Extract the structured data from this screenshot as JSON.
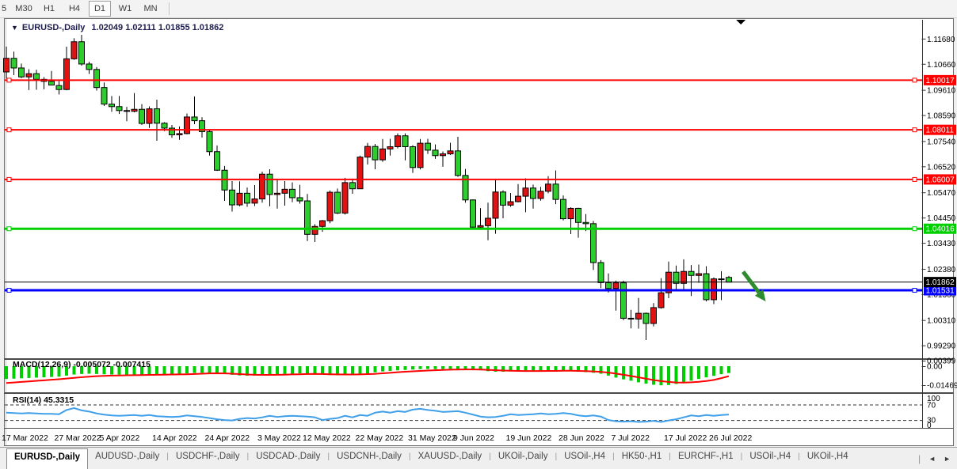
{
  "toolbar": {
    "timeframes": [
      "5",
      "M30",
      "H1",
      "H4",
      "D1",
      "W1",
      "MN"
    ],
    "active_timeframe": "D1"
  },
  "chart_data": {
    "type": "candlestick",
    "dropdown_icon": "▼",
    "symbol": "EURUSD-,Daily",
    "ohlc_display": "1.02049 1.02111 1.01855 1.01862",
    "bull_color": "#e31212",
    "bear_color": "#2bce2b",
    "wick_color": "#000000",
    "y_axis_ticks": [
      "1.11680",
      "1.10660",
      "1.09610",
      "1.08590",
      "1.07540",
      "1.06520",
      "1.05470",
      "1.04450",
      "1.03430",
      "1.02380",
      "1.01360",
      "1.00310",
      "0.99290"
    ],
    "ylim": [
      0.988,
      1.125
    ],
    "x_labels": [
      "17 Mar 2022",
      "27 Mar 2022",
      "5 Apr 2022",
      "14 Apr 2022",
      "24 Apr 2022",
      "3 May 2022",
      "12 May 2022",
      "22 May 2022",
      "31 May 2022",
      "9 Jun 2022",
      "19 Jun 2022",
      "28 Jun 2022",
      "7 Jul 2022",
      "17 Jul 2022",
      "26 Jul 2022"
    ],
    "x_label_indices": [
      0,
      7,
      13,
      20,
      27,
      34,
      40,
      47,
      54,
      60,
      67,
      74,
      81,
      88,
      94
    ],
    "candles": [
      [
        1.1035,
        1.1137,
        1.1008,
        1.109
      ],
      [
        1.109,
        1.1117,
        1.1022,
        1.1051
      ],
      [
        1.1051,
        1.1069,
        1.101,
        1.1015
      ],
      [
        1.1015,
        1.1046,
        1.0962,
        1.1028
      ],
      [
        1.1028,
        1.1044,
        1.0963,
        1.1005
      ],
      [
        1.1005,
        1.1014,
        1.0965,
        1.0997
      ],
      [
        1.0997,
        1.1039,
        1.0981,
        1.0982
      ],
      [
        1.098,
        1.0999,
        1.0944,
        1.0964
      ],
      [
        1.0964,
        1.1137,
        1.0961,
        1.1088
      ],
      [
        1.1088,
        1.1171,
        1.1084,
        1.1157
      ],
      [
        1.1157,
        1.1185,
        1.106,
        1.1067
      ],
      [
        1.1067,
        1.1076,
        1.1027,
        1.1045
      ],
      [
        1.1045,
        1.1055,
        1.096,
        1.0972
      ],
      [
        1.0972,
        1.0992,
        1.0898,
        1.0905
      ],
      [
        1.0905,
        1.0938,
        1.0874,
        1.0895
      ],
      [
        1.0895,
        1.0938,
        1.0865,
        1.0879
      ],
      [
        1.0879,
        1.0894,
        1.0836,
        1.0876
      ],
      [
        1.0876,
        1.095,
        1.0872,
        1.0884
      ],
      [
        1.0884,
        1.0905,
        1.0821,
        1.0827
      ],
      [
        1.0827,
        1.0896,
        1.0809,
        1.0886
      ],
      [
        1.0886,
        1.0923,
        1.0757,
        1.0828
      ],
      [
        1.0828,
        1.0832,
        1.0796,
        1.0808
      ],
      [
        1.0808,
        1.0821,
        1.0769,
        1.0781
      ],
      [
        1.0781,
        1.0815,
        1.0761,
        1.0786
      ],
      [
        1.0786,
        1.0867,
        1.0783,
        1.0853
      ],
      [
        1.0853,
        1.0936,
        1.0824,
        1.0838
      ],
      [
        1.0838,
        1.0852,
        1.077,
        1.0794
      ],
      [
        1.0794,
        1.08,
        1.0697,
        1.0713
      ],
      [
        1.0713,
        1.0738,
        1.0635,
        1.0638
      ],
      [
        1.0638,
        1.0655,
        1.0514,
        1.0558
      ],
      [
        1.0558,
        1.0594,
        1.0471,
        1.0498
      ],
      [
        1.0498,
        1.0593,
        1.0492,
        1.0545
      ],
      [
        1.0545,
        1.0568,
        1.049,
        1.0505
      ],
      [
        1.0505,
        1.0578,
        1.0493,
        1.0522
      ],
      [
        1.0522,
        1.0632,
        1.0507,
        1.0622
      ],
      [
        1.0622,
        1.0642,
        1.0492,
        1.054
      ],
      [
        1.054,
        1.0599,
        1.0483,
        1.0545
      ],
      [
        1.0545,
        1.0594,
        1.0495,
        1.0561
      ],
      [
        1.0561,
        1.0589,
        1.0509,
        1.0527
      ],
      [
        1.0527,
        1.0579,
        1.0503,
        1.0514
      ],
      [
        1.0514,
        1.0542,
        1.0352,
        1.0379
      ],
      [
        1.0379,
        1.042,
        1.0348,
        1.0411
      ],
      [
        1.0411,
        1.0437,
        1.0389,
        1.0434
      ],
      [
        1.0434,
        1.0556,
        1.0424,
        1.0549
      ],
      [
        1.0549,
        1.0564,
        1.0461,
        1.0465
      ],
      [
        1.0465,
        1.0607,
        1.0459,
        1.0588
      ],
      [
        1.0588,
        1.0604,
        1.0543,
        1.0563
      ],
      [
        1.0563,
        1.0697,
        1.0562,
        1.0691
      ],
      [
        1.0691,
        1.0748,
        1.0661,
        1.0734
      ],
      [
        1.0734,
        1.0744,
        1.0642,
        1.068
      ],
      [
        1.068,
        1.0764,
        1.0672,
        1.0724
      ],
      [
        1.0724,
        1.0765,
        1.0697,
        1.0733
      ],
      [
        1.0733,
        1.0787,
        1.0726,
        1.0777
      ],
      [
        1.0777,
        1.0787,
        1.0678,
        1.0733
      ],
      [
        1.0733,
        1.0739,
        1.0627,
        1.0649
      ],
      [
        1.0649,
        1.0764,
        1.0641,
        1.0747
      ],
      [
        1.0747,
        1.0765,
        1.0704,
        1.0719
      ],
      [
        1.0719,
        1.0742,
        1.0684,
        1.0697
      ],
      [
        1.0697,
        1.0714,
        1.0652,
        1.0704
      ],
      [
        1.0704,
        1.0749,
        1.07,
        1.0716
      ],
      [
        1.0716,
        1.0773,
        1.0611,
        1.0617
      ],
      [
        1.0617,
        1.0643,
        1.0507,
        1.0518
      ],
      [
        1.0518,
        1.052,
        1.0398,
        1.0408
      ],
      [
        1.0408,
        1.0485,
        1.0397,
        1.0414
      ],
      [
        1.0414,
        1.0507,
        1.0355,
        1.0444
      ],
      [
        1.0444,
        1.0601,
        1.0381,
        1.055
      ],
      [
        1.055,
        1.0557,
        1.0444,
        1.0497
      ],
      [
        1.0497,
        1.0546,
        1.049,
        1.0511
      ],
      [
        1.0511,
        1.0582,
        1.0508,
        1.0533
      ],
      [
        1.0533,
        1.0605,
        1.0468,
        1.0566
      ],
      [
        1.0566,
        1.058,
        1.0483,
        1.0524
      ],
      [
        1.0524,
        1.0571,
        1.0515,
        1.0553
      ],
      [
        1.0553,
        1.0614,
        1.0545,
        1.0582
      ],
      [
        1.0582,
        1.0637,
        1.0501,
        1.052
      ],
      [
        1.052,
        1.0536,
        1.0435,
        1.0442
      ],
      [
        1.0442,
        1.0488,
        1.038,
        1.0484
      ],
      [
        1.0484,
        1.0486,
        1.0365,
        1.0427
      ],
      [
        1.0427,
        1.0461,
        1.0392,
        1.0422
      ],
      [
        1.0422,
        1.0433,
        1.0235,
        1.0265
      ],
      [
        1.0265,
        1.0275,
        1.0162,
        1.0184
      ],
      [
        1.0184,
        1.0221,
        1.0144,
        1.016
      ],
      [
        1.016,
        1.0192,
        1.0071,
        1.0183
      ],
      [
        1.0183,
        1.0192,
        1.0032,
        1.004
      ],
      [
        1.004,
        1.0074,
        0.9999,
        1.0037
      ],
      [
        1.0037,
        1.0122,
        0.9998,
        1.006
      ],
      [
        1.006,
        1.0063,
        0.9952,
        1.0019
      ],
      [
        1.0019,
        1.0101,
        1.0007,
        1.0083
      ],
      [
        1.0083,
        1.0202,
        1.0079,
        1.0143
      ],
      [
        1.0143,
        1.0269,
        1.0121,
        1.0226
      ],
      [
        1.0226,
        1.0253,
        1.0154,
        1.0181
      ],
      [
        1.0181,
        1.0278,
        1.0152,
        1.0229
      ],
      [
        1.0229,
        1.0255,
        1.013,
        1.0213
      ],
      [
        1.0213,
        1.0257,
        1.0183,
        1.022
      ],
      [
        1.022,
        1.025,
        1.0108,
        1.0115
      ],
      [
        1.0115,
        1.0205,
        1.0097,
        1.0199
      ],
      [
        1.0199,
        1.023,
        1.0113,
        1.0196
      ],
      [
        1.0205,
        1.0211,
        1.0186,
        1.0186
      ]
    ],
    "horizontal_lines": [
      {
        "price": 1.10017,
        "label": "1.10017",
        "color": "#ff0000",
        "width": 2
      },
      {
        "price": 1.08011,
        "label": "1.08011",
        "color": "#ff0000",
        "width": 2
      },
      {
        "price": 1.06007,
        "label": "1.06007",
        "color": "#ff0000",
        "width": 2
      },
      {
        "price": 1.04016,
        "label": "1.04016",
        "color": "#00d000",
        "width": 3
      },
      {
        "price": 1.01531,
        "label": "1.01531",
        "color": "#0000ff",
        "width": 3
      }
    ],
    "current_price_line": {
      "price": 1.01862,
      "label": "1.01862",
      "color": "#000000"
    },
    "annotations": {
      "arrow": {
        "type": "down-right-arrow",
        "x_index": 97.9,
        "price_start": 1.0228,
        "x2_index": 100.9,
        "price_end": 1.0108,
        "color": "#2e8b2e"
      },
      "shift_marker": {
        "type": "triangle-down",
        "x_index": 97.6
      }
    },
    "indicators": {
      "macd": {
        "label": "MACD(12,26,9) -0.005072 -0.007415",
        "histogram_color": "#00ce00",
        "signal_color": "#ff0000",
        "scale_labels": [
          "0.00399",
          "0.00",
          "-0.01469"
        ],
        "value_scale": 0.001,
        "macd_values": [
          -9.5,
          -9.3,
          -9.0,
          -8.8,
          -8.5,
          -8.3,
          -8.0,
          -7.8,
          -7.0,
          -6.2,
          -5.8,
          -5.6,
          -5.8,
          -6.0,
          -6.2,
          -6.3,
          -6.4,
          -6.4,
          -6.3,
          -6.2,
          -6.0,
          -6.0,
          -5.9,
          -5.7,
          -5.4,
          -5.0,
          -4.9,
          -5.0,
          -5.3,
          -5.8,
          -6.4,
          -6.9,
          -7.1,
          -7.0,
          -6.7,
          -6.2,
          -6.0,
          -5.8,
          -5.6,
          -5.4,
          -5.3,
          -5.5,
          -6.2,
          -6.6,
          -6.7,
          -6.5,
          -6.0,
          -5.6,
          -5.3,
          -4.6,
          -3.9,
          -3.5,
          -3.1,
          -2.8,
          -2.5,
          -2.2,
          -2.1,
          -2.2,
          -2.1,
          -2.0,
          -2.0,
          -2.1,
          -2.4,
          -3.0,
          -3.7,
          -4.1,
          -4.1,
          -3.9,
          -3.7,
          -3.6,
          -3.4,
          -3.3,
          -3.2,
          -3.2,
          -3.3,
          -3.6,
          -4.0,
          -4.4,
          -4.9,
          -5.6,
          -7.0,
          -8.5,
          -9.8,
          -10.8,
          -12.0,
          -13.0,
          -13.8,
          -14.2,
          -14.0,
          -13.2,
          -12.0,
          -10.8,
          -9.5,
          -8.3,
          -7.2,
          -6.0,
          -5.072
        ],
        "signal_values": [
          -12.5,
          -12.1,
          -11.7,
          -11.3,
          -10.9,
          -10.5,
          -10.1,
          -9.7,
          -9.2,
          -8.7,
          -8.2,
          -7.8,
          -7.4,
          -7.2,
          -7.0,
          -6.9,
          -6.8,
          -6.7,
          -6.6,
          -6.5,
          -6.4,
          -6.3,
          -6.2,
          -6.1,
          -6.0,
          -5.8,
          -5.6,
          -5.4,
          -5.3,
          -5.4,
          -5.6,
          -5.9,
          -6.2,
          -6.4,
          -6.5,
          -6.5,
          -6.4,
          -6.3,
          -6.1,
          -6.0,
          -5.8,
          -5.7,
          -5.8,
          -6.0,
          -6.1,
          -6.2,
          -6.2,
          -6.1,
          -5.9,
          -5.7,
          -5.3,
          -4.9,
          -4.5,
          -4.1,
          -3.8,
          -3.5,
          -3.2,
          -3.0,
          -2.8,
          -2.6,
          -2.5,
          -2.4,
          -2.4,
          -2.5,
          -2.7,
          -3.0,
          -3.2,
          -3.4,
          -3.5,
          -3.6,
          -3.6,
          -3.6,
          -3.5,
          -3.5,
          -3.4,
          -3.4,
          -3.5,
          -3.7,
          -3.9,
          -4.2,
          -4.8,
          -5.5,
          -6.4,
          -7.3,
          -8.3,
          -9.3,
          -10.3,
          -11.1,
          -11.7,
          -12.1,
          -12.2,
          -12.0,
          -11.6,
          -11.0,
          -10.2,
          -8.9,
          -7.415
        ]
      },
      "rsi": {
        "label": "RSI(14) 45.3315",
        "line_color": "#3f9fe8",
        "levels": [
          70,
          30
        ],
        "scale_labels": [
          "100",
          "70",
          "30",
          "0"
        ],
        "values": [
          50,
          49,
          48,
          49,
          48,
          47,
          47,
          46,
          57,
          62,
          56,
          53,
          48,
          45,
          43,
          42,
          43,
          44,
          42,
          44,
          41,
          40,
          39,
          40,
          43,
          41,
          39,
          36,
          33,
          31,
          30,
          34,
          36,
          35,
          38,
          42,
          39,
          41,
          42,
          41,
          40,
          38,
          31,
          34,
          36,
          42,
          38,
          44,
          42,
          50,
          53,
          50,
          54,
          52,
          58,
          60,
          57,
          55,
          52,
          53,
          54,
          50,
          45,
          40,
          38,
          39,
          42,
          46,
          44,
          45,
          46,
          48,
          46,
          47,
          49,
          47,
          43,
          41,
          43,
          40,
          31,
          28,
          27,
          28,
          26,
          27,
          29,
          26,
          30,
          33,
          38,
          43,
          41,
          44,
          42,
          44,
          45.33
        ]
      }
    }
  },
  "tab_bar": {
    "tabs": [
      {
        "label": "EURUSD-,Daily",
        "active": true
      },
      {
        "label": "AUDUSD-,Daily",
        "active": false
      },
      {
        "label": "USDCHF-,Daily",
        "active": false
      },
      {
        "label": "USDCAD-,Daily",
        "active": false
      },
      {
        "label": "USDCNH-,Daily",
        "active": false
      },
      {
        "label": "XAUUSD-,Daily",
        "active": false
      },
      {
        "label": "UKOil-,Daily",
        "active": false
      },
      {
        "label": "USOil-,H4",
        "active": false
      },
      {
        "label": "HK50-,H1",
        "active": false
      },
      {
        "label": "EURCHF-,H1",
        "active": false
      },
      {
        "label": "USOil-,H4",
        "active": false
      },
      {
        "label": "UKOil-,H4",
        "active": false
      }
    ],
    "separator": "|",
    "scroll_left_icon": "◄",
    "scroll_right_icon": "►"
  }
}
